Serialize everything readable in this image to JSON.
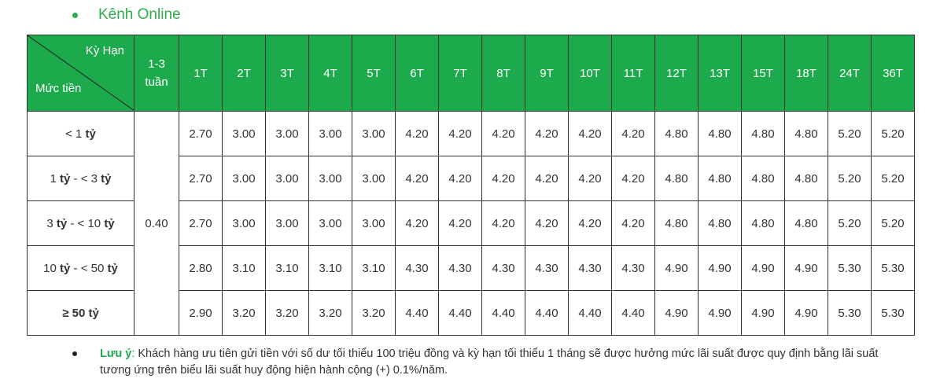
{
  "section_title": "Kênh Online",
  "table": {
    "corner_top": "Kỳ Hạn",
    "corner_bottom": "Mức tiền",
    "weeks_header_line1": "1-3",
    "weeks_header_line2": "tuần",
    "terms": [
      "1T",
      "2T",
      "3T",
      "4T",
      "5T",
      "6T",
      "7T",
      "8T",
      "9T",
      "10T",
      "11T",
      "12T",
      "13T",
      "15T",
      "18T",
      "24T",
      "36T"
    ],
    "weeks_rate": "0.40",
    "rows": [
      {
        "label_pre": "< 1 ",
        "label_unit": "tỷ",
        "label_mid": "",
        "label_unit2": "",
        "rates": [
          "2.70",
          "3.00",
          "3.00",
          "3.00",
          "3.00",
          "4.20",
          "4.20",
          "4.20",
          "4.20",
          "4.20",
          "4.20",
          "4.80",
          "4.80",
          "4.80",
          "4.80",
          "5.20",
          "5.20"
        ]
      },
      {
        "label_pre": "1 ",
        "label_unit": "tỷ",
        "label_mid": " - < 3 ",
        "label_unit2": "tỷ",
        "rates": [
          "2.70",
          "3.00",
          "3.00",
          "3.00",
          "3.00",
          "4.20",
          "4.20",
          "4.20",
          "4.20",
          "4.20",
          "4.20",
          "4.80",
          "4.80",
          "4.80",
          "4.80",
          "5.20",
          "5.20"
        ]
      },
      {
        "label_pre": "3 ",
        "label_unit": "tỷ",
        "label_mid": " - < 10 ",
        "label_unit2": "tỷ",
        "rates": [
          "2.70",
          "3.00",
          "3.00",
          "3.00",
          "3.00",
          "4.20",
          "4.20",
          "4.20",
          "4.20",
          "4.20",
          "4.20",
          "4.80",
          "4.80",
          "4.80",
          "4.80",
          "5.20",
          "5.20"
        ]
      },
      {
        "label_pre": "10 ",
        "label_unit": "tỷ",
        "label_mid": " - < 50 ",
        "label_unit2": "tỷ",
        "rates": [
          "2.80",
          "3.10",
          "3.10",
          "3.10",
          "3.10",
          "4.30",
          "4.30",
          "4.30",
          "4.30",
          "4.30",
          "4.30",
          "4.90",
          "4.90",
          "4.90",
          "4.90",
          "5.30",
          "5.30"
        ]
      },
      {
        "label_bold": "≥ 50 tỷ",
        "rates": [
          "2.90",
          "3.20",
          "3.20",
          "3.20",
          "3.20",
          "4.40",
          "4.40",
          "4.40",
          "4.40",
          "4.40",
          "4.40",
          "4.90",
          "4.90",
          "4.90",
          "4.90",
          "5.30",
          "5.30"
        ]
      }
    ]
  },
  "note": {
    "label": "Lưu ý",
    "colon": ":",
    "text": " Khách hàng ưu tiên gửi tiền với số dư tối thiểu 100 triệu đồng và kỳ hạn tối thiểu 1 tháng sẽ được hưởng mức lãi suất được quy định bằng lãi suất tương ứng trên biểu lãi suất huy động hiện hành cộng (+) 0.1%/năm."
  },
  "colors": {
    "header_green": "#1daa4d",
    "heading_green": "#2eae4e"
  }
}
